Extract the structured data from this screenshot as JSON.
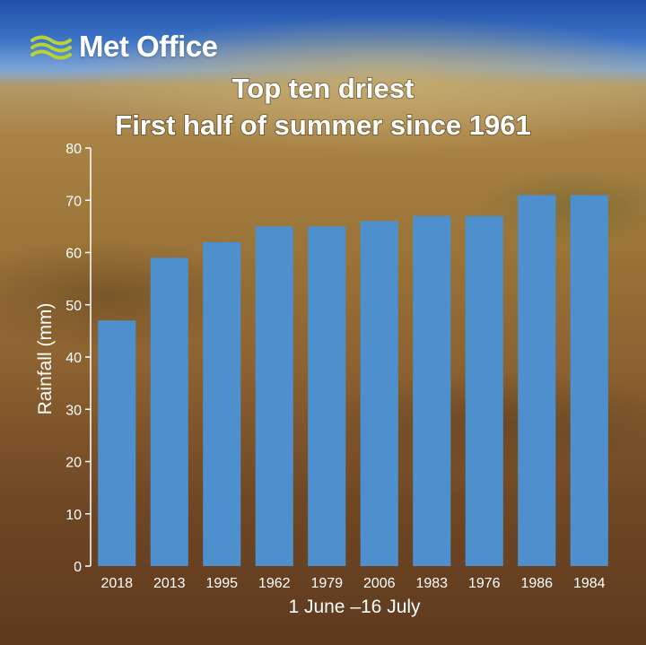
{
  "brand": {
    "name": "Met Office",
    "logo_icon": "met-office-waves-icon",
    "logo_color": "#b5d334"
  },
  "colors": {
    "bar": "#4e8fce",
    "text": "#ffffff"
  },
  "chart_data": {
    "type": "bar",
    "title": "Top ten driest",
    "subtitle": "First half of summer since 1961",
    "xlabel": "1 June –16 July",
    "ylabel": "Rainfall (mm)",
    "categories": [
      "2018",
      "2013",
      "1995",
      "1962",
      "1979",
      "2006",
      "1983",
      "1976",
      "1986",
      "1984"
    ],
    "values": [
      47,
      59,
      62,
      65,
      65,
      66,
      67,
      67,
      71,
      71
    ],
    "ylim": [
      0,
      80
    ],
    "yticks": [
      0,
      10,
      20,
      30,
      40,
      50,
      60,
      70,
      80
    ],
    "grid": false,
    "legend": "none"
  }
}
